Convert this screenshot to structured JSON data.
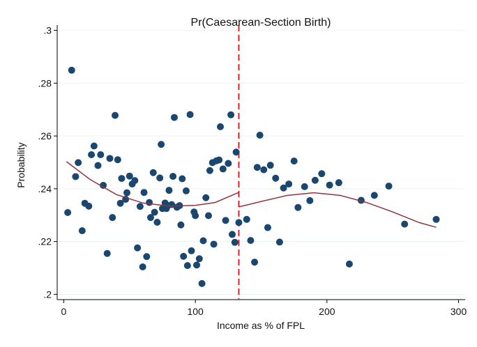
{
  "chart_data": {
    "type": "scatter",
    "title": "Pr(Caesarean-Section Birth)",
    "xlabel": "Income as % of FPL",
    "ylabel": "Probability",
    "xlim": [
      -5,
      305
    ],
    "ylim": [
      0.198,
      0.302
    ],
    "xticks": [
      0,
      100,
      200,
      300
    ],
    "xtick_labels": [
      "0",
      "100",
      "200",
      "300"
    ],
    "yticks": [
      0.2,
      0.22,
      0.24,
      0.26,
      0.28,
      0.3
    ],
    "ytick_labels": [
      ".2",
      ".22",
      ".24",
      ".26",
      ".28",
      ".3"
    ],
    "grid": "horizontal",
    "cutoff_x": 133,
    "colors": {
      "points": "#1a476f",
      "fit": "#90353b",
      "cutoff": "#e8202a",
      "grid": "#eaf2f3",
      "axis": "#000000"
    },
    "points": [
      [
        3,
        0.231
      ],
      [
        6,
        0.2849
      ],
      [
        9,
        0.2446
      ],
      [
        11,
        0.2499
      ],
      [
        14,
        0.2241
      ],
      [
        16,
        0.2345
      ],
      [
        19,
        0.2334
      ],
      [
        21,
        0.2529
      ],
      [
        23,
        0.2562
      ],
      [
        26,
        0.2488
      ],
      [
        28,
        0.2529
      ],
      [
        30,
        0.2413
      ],
      [
        33,
        0.2155
      ],
      [
        35,
        0.2515
      ],
      [
        37,
        0.2291
      ],
      [
        39,
        0.2678
      ],
      [
        41,
        0.251
      ],
      [
        43,
        0.2345
      ],
      [
        44,
        0.2439
      ],
      [
        47,
        0.236
      ],
      [
        48,
        0.2385
      ],
      [
        50,
        0.2448
      ],
      [
        52,
        0.2418
      ],
      [
        54,
        0.2431
      ],
      [
        56,
        0.2176
      ],
      [
        58,
        0.2333
      ],
      [
        60,
        0.2104
      ],
      [
        61,
        0.2386
      ],
      [
        63,
        0.2143
      ],
      [
        65,
        0.2348
      ],
      [
        66,
        0.2291
      ],
      [
        68,
        0.2461
      ],
      [
        69,
        0.2311
      ],
      [
        71,
        0.2273
      ],
      [
        73,
        0.2441
      ],
      [
        74,
        0.2568
      ],
      [
        75,
        0.2325
      ],
      [
        77,
        0.2346
      ],
      [
        78,
        0.2325
      ],
      [
        79,
        0.2336
      ],
      [
        80,
        0.2394
      ],
      [
        82,
        0.234
      ],
      [
        83,
        0.2447
      ],
      [
        84,
        0.267
      ],
      [
        86,
        0.233
      ],
      [
        88,
        0.2336
      ],
      [
        89,
        0.2263
      ],
      [
        90,
        0.2438
      ],
      [
        91,
        0.2144
      ],
      [
        93,
        0.2392
      ],
      [
        94,
        0.2109
      ],
      [
        96,
        0.2681
      ],
      [
        97,
        0.2165
      ],
      [
        99,
        0.2312
      ],
      [
        100,
        0.2298
      ],
      [
        101,
        0.2111
      ],
      [
        103,
        0.2135
      ],
      [
        105,
        0.2041
      ],
      [
        106,
        0.2203
      ],
      [
        108,
        0.2366
      ],
      [
        110,
        0.2298
      ],
      [
        111,
        0.2469
      ],
      [
        113,
        0.2499
      ],
      [
        114,
        0.219
      ],
      [
        116,
        0.2506
      ],
      [
        118,
        0.2509
      ],
      [
        119,
        0.2635
      ],
      [
        121,
        0.2475
      ],
      [
        123,
        0.228
      ],
      [
        125,
        0.2496
      ],
      [
        127,
        0.268
      ],
      [
        128,
        0.2227
      ],
      [
        130,
        0.2197
      ],
      [
        131,
        0.2539
      ],
      [
        133,
        0.2272
      ],
      [
        139,
        0.2284
      ],
      [
        142,
        0.2204
      ],
      [
        145,
        0.2122
      ],
      [
        147,
        0.2481
      ],
      [
        149,
        0.2603
      ],
      [
        152,
        0.2472
      ],
      [
        155,
        0.2253
      ],
      [
        157,
        0.2489
      ],
      [
        161,
        0.244
      ],
      [
        164,
        0.2198
      ],
      [
        167,
        0.2403
      ],
      [
        171,
        0.2418
      ],
      [
        175,
        0.2505
      ],
      [
        178,
        0.2329
      ],
      [
        183,
        0.2408
      ],
      [
        187,
        0.2355
      ],
      [
        191,
        0.2432
      ],
      [
        196,
        0.2457
      ],
      [
        202,
        0.2414
      ],
      [
        209,
        0.2423
      ],
      [
        217,
        0.2115
      ],
      [
        226,
        0.2356
      ],
      [
        236,
        0.2375
      ],
      [
        247,
        0.241
      ],
      [
        259,
        0.2266
      ],
      [
        283,
        0.2284
      ]
    ],
    "fit_left": [
      [
        2,
        0.2503
      ],
      [
        20,
        0.2435
      ],
      [
        40,
        0.2378
      ],
      [
        60,
        0.2346
      ],
      [
        80,
        0.2334
      ],
      [
        100,
        0.2337
      ],
      [
        115,
        0.2348
      ],
      [
        133,
        0.2386
      ]
    ],
    "fit_right": [
      [
        133,
        0.2331
      ],
      [
        150,
        0.2352
      ],
      [
        170,
        0.2375
      ],
      [
        190,
        0.2385
      ],
      [
        210,
        0.2375
      ],
      [
        230,
        0.2348
      ],
      [
        250,
        0.2312
      ],
      [
        270,
        0.2272
      ],
      [
        283,
        0.2254
      ]
    ]
  }
}
